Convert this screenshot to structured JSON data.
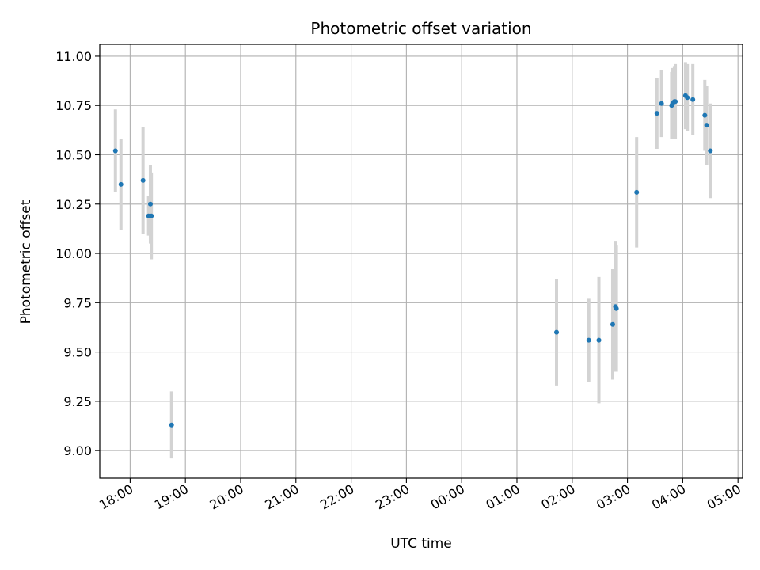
{
  "chart_data": {
    "type": "scatter",
    "title": "Photometric offset variation",
    "xlabel": "UTC time",
    "ylabel": "Photometric offset",
    "grid": true,
    "xlim": [
      "17:27",
      "05:05"
    ],
    "ylim": [
      8.86,
      11.06
    ],
    "x_ticks": [
      "18:00",
      "19:00",
      "20:00",
      "21:00",
      "22:00",
      "23:00",
      "00:00",
      "01:00",
      "02:00",
      "03:00",
      "04:00",
      "05:00"
    ],
    "y_ticks": [
      "9.00",
      "9.25",
      "9.50",
      "9.75",
      "10.00",
      "10.25",
      "10.50",
      "10.75",
      "11.00"
    ],
    "colors": {
      "marker": "#1f77b4",
      "errorbar": "#d3d3d3",
      "grid": "#b0b0b0"
    },
    "points": [
      {
        "time": "17:44",
        "y": 10.52,
        "err": 0.21
      },
      {
        "time": "17:50",
        "y": 10.35,
        "err": 0.23
      },
      {
        "time": "18:14",
        "y": 10.37,
        "err": 0.27
      },
      {
        "time": "18:20",
        "y": 10.19,
        "err": 0.1
      },
      {
        "time": "18:22",
        "y": 10.25,
        "err": 0.2
      },
      {
        "time": "18:23",
        "y": 10.19,
        "err": 0.22
      },
      {
        "time": "18:45",
        "y": 9.13,
        "err": 0.17
      },
      {
        "time": "01:43",
        "y": 9.6,
        "err": 0.27
      },
      {
        "time": "02:18",
        "y": 9.56,
        "err": 0.21
      },
      {
        "time": "02:29",
        "y": 9.56,
        "err": 0.32
      },
      {
        "time": "02:44",
        "y": 9.64,
        "err": 0.28
      },
      {
        "time": "02:47",
        "y": 9.73,
        "err": 0.33
      },
      {
        "time": "02:48",
        "y": 9.72,
        "err": 0.32
      },
      {
        "time": "03:10",
        "y": 10.31,
        "err": 0.28
      },
      {
        "time": "03:32",
        "y": 10.71,
        "err": 0.18
      },
      {
        "time": "03:37",
        "y": 10.76,
        "err": 0.17
      },
      {
        "time": "03:48",
        "y": 10.75,
        "err": 0.17
      },
      {
        "time": "03:49",
        "y": 10.76,
        "err": 0.18
      },
      {
        "time": "03:51",
        "y": 10.77,
        "err": 0.18
      },
      {
        "time": "03:52",
        "y": 10.77,
        "err": 0.19
      },
      {
        "time": "04:03",
        "y": 10.8,
        "err": 0.17
      },
      {
        "time": "04:05",
        "y": 10.79,
        "err": 0.17
      },
      {
        "time": "04:11",
        "y": 10.78,
        "err": 0.18
      },
      {
        "time": "04:24",
        "y": 10.7,
        "err": 0.18
      },
      {
        "time": "04:26",
        "y": 10.65,
        "err": 0.2
      },
      {
        "time": "04:30",
        "y": 10.52,
        "err": 0.24
      }
    ]
  }
}
